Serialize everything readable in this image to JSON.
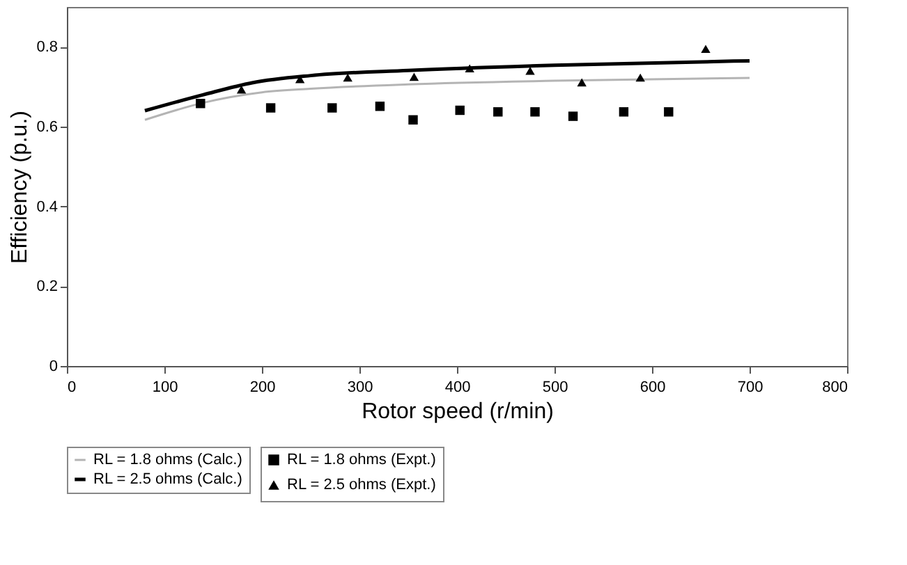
{
  "chart_data": {
    "type": "line",
    "xlabel": "Rotor speed (r/min)",
    "ylabel": "Efficiency (p.u.)",
    "xlim": [
      0,
      800
    ],
    "xticks": [
      0,
      100,
      200,
      300,
      400,
      500,
      600,
      700,
      800
    ],
    "ylim": [
      0,
      0.9
    ],
    "yticks": [
      {
        "value": 0,
        "label": "0"
      },
      0.2,
      0.4,
      0.6,
      0.8
    ],
    "grid": false,
    "legend": "bottom",
    "series": [
      {
        "name": "RL = 1.8 ohms (Calc.)",
        "color": "#b4b4b4",
        "marker": "none",
        "x": [
          80,
          140,
          200,
          250,
          350,
          500,
          700
        ],
        "values": [
          0.617,
          0.66,
          0.686,
          0.695,
          0.706,
          0.715,
          0.722
        ]
      },
      {
        "name": "RL = 2.5 ohms (Calc.)",
        "color": "#000000",
        "marker": "none",
        "x": [
          80,
          140,
          190,
          250,
          350,
          500,
          700
        ],
        "values": [
          0.64,
          0.68,
          0.71,
          0.728,
          0.741,
          0.754,
          0.765
        ]
      },
      {
        "name": "RL = 1.8 ohms (Expt.)",
        "type": "scatter",
        "color": "#000000",
        "marker": "square",
        "x": [
          137,
          209,
          272,
          321,
          355,
          403,
          442,
          480,
          519,
          571,
          617
        ],
        "values": [
          0.658,
          0.647,
          0.647,
          0.651,
          0.617,
          0.641,
          0.637,
          0.637,
          0.626,
          0.637,
          0.637
        ]
      },
      {
        "name": "RL = 2.5 ohms (Expt.)",
        "type": "scatter",
        "color": "#000000",
        "marker": "triangle",
        "x": [
          179,
          239,
          288,
          356,
          413,
          475,
          528,
          588,
          655
        ],
        "values": [
          0.693,
          0.719,
          0.723,
          0.725,
          0.746,
          0.74,
          0.711,
          0.723,
          0.795
        ]
      }
    ]
  }
}
